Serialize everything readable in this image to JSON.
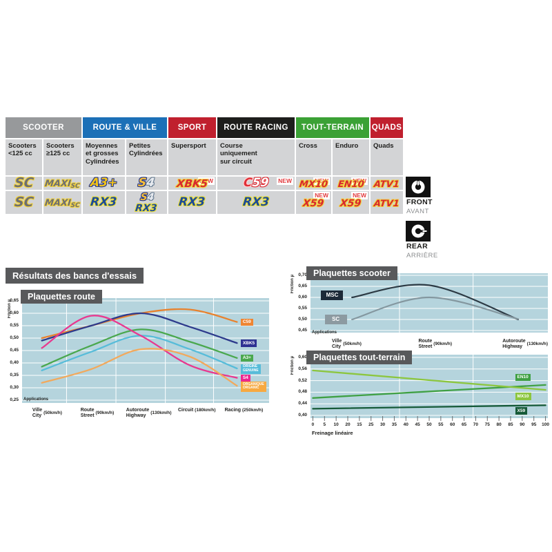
{
  "theme": {
    "plot_bg": "#b5d4dd",
    "title_bg": "#58595b",
    "cell_bg": "#d3d4d6",
    "new_color": "#e23a3e"
  },
  "results_heading": "Résultats des bancs d'essais",
  "table": {
    "new_label": "NEW",
    "groups": [
      {
        "label": "SCOOTER",
        "color": "#97999b",
        "span": 2
      },
      {
        "label": "ROUTE & VILLE",
        "color": "#1c70b7",
        "span": 2
      },
      {
        "label": "SPORT",
        "color": "#c0202e",
        "span": 1
      },
      {
        "label": "ROUTE RACING",
        "color": "#1e1e1c",
        "span": 1
      },
      {
        "label": "TOUT-TERRAIN",
        "color": "#3ba135",
        "span": 2
      },
      {
        "label": "QUADS",
        "color": "#c0202e",
        "span": 1
      }
    ],
    "columns": [
      "Scooters\n<125 cc",
      "Scooters\n≥125 cc",
      "Moyennes\net grosses\nCylindrées",
      "Petites\nCylindrées",
      "Supersport",
      "Course\nuniquement\nsur circuit",
      "Cross",
      "Enduro",
      "Quads"
    ],
    "front": [
      {
        "cell": "sc",
        "new": false,
        "lines": [
          [
            {
              "t": "SC",
              "s": "g sz19"
            }
          ]
        ]
      },
      {
        "cell": "maxi-sc",
        "new": false,
        "lines": [
          [
            {
              "t": "MAXI",
              "s": "g sz13"
            },
            {
              "t": "SC",
              "s": "g sz9"
            }
          ]
        ]
      },
      {
        "cell": "a3plus",
        "new": false,
        "lines": [
          [
            {
              "t": "A3+",
              "s": "y sz17"
            }
          ]
        ]
      },
      {
        "cell": "s4",
        "new": false,
        "lines": [
          [
            {
              "t": "S",
              "s": "gold sz17"
            },
            {
              "t": "4",
              "s": "sil sz17"
            }
          ]
        ]
      },
      {
        "cell": "xbk5",
        "new": true,
        "lines": [
          [
            {
              "t": "XBK5",
              "s": "red sz15"
            }
          ]
        ]
      },
      {
        "cell": "c59",
        "new": true,
        "lines": [
          [
            {
              "t": "C",
              "s": "cred sz17"
            },
            {
              "t": "59",
              "s": "cwhite sz17"
            }
          ]
        ]
      },
      {
        "cell": "mx10",
        "new": true,
        "lines": [
          [
            {
              "t": "MX10",
              "s": "red sz13"
            }
          ]
        ]
      },
      {
        "cell": "en10",
        "new": true,
        "lines": [
          [
            {
              "t": "EN10",
              "s": "red sz13"
            }
          ]
        ]
      },
      {
        "cell": "atv1",
        "new": false,
        "lines": [
          [
            {
              "t": "ATV1",
              "s": "red sz13"
            }
          ]
        ]
      }
    ],
    "rear": [
      {
        "cell": "sc",
        "new": false,
        "lines": [
          [
            {
              "t": "SC",
              "s": "g sz19"
            }
          ]
        ]
      },
      {
        "cell": "maxi-sc",
        "new": false,
        "lines": [
          [
            {
              "t": "MAXI",
              "s": "g sz13"
            },
            {
              "t": "SC",
              "s": "g sz9"
            }
          ]
        ]
      },
      {
        "cell": "rx3",
        "new": false,
        "lines": [
          [
            {
              "t": "RX3",
              "s": "blue sz17"
            }
          ]
        ]
      },
      {
        "cell": "s4-rx3",
        "new": false,
        "lines": [
          [
            {
              "t": "S",
              "s": "gold sz14"
            },
            {
              "t": "4",
              "s": "sil sz14"
            }
          ],
          [
            {
              "t": "RX3",
              "s": "blue sz14"
            }
          ]
        ]
      },
      {
        "cell": "rx3",
        "new": false,
        "lines": [
          [
            {
              "t": "RX3",
              "s": "blue sz17"
            }
          ]
        ]
      },
      {
        "cell": "rx3",
        "new": false,
        "lines": [
          [
            {
              "t": "RX3",
              "s": "blue sz17"
            }
          ]
        ]
      },
      {
        "cell": "x59",
        "new": true,
        "lines": [
          [
            {
              "t": "X59",
              "s": "red sz14"
            }
          ]
        ]
      },
      {
        "cell": "x59",
        "new": true,
        "lines": [
          [
            {
              "t": "X59",
              "s": "red sz14"
            }
          ]
        ]
      },
      {
        "cell": "atv1",
        "new": false,
        "lines": [
          [
            {
              "t": "ATV1",
              "s": "red sz13"
            }
          ]
        ]
      }
    ]
  },
  "axle": {
    "front": {
      "label": "FRONT",
      "sub": "AVANT",
      "icon": "brake-disc-front-icon"
    },
    "rear": {
      "label": "REAR",
      "sub": "ARRIÈRE",
      "icon": "brake-disc-rear-icon"
    }
  },
  "chart_data": [
    {
      "id": "route",
      "type": "line",
      "title": "Plaquettes route",
      "ylabel": "Friction µ",
      "x_heading": "Applications",
      "legend_position": "right",
      "grid": true,
      "ylim": [
        0.25,
        0.65
      ],
      "y_ticks": [
        "0,65",
        "0,60",
        "0,55",
        "0,50",
        "0,45",
        "0,40",
        "0,35",
        "0,30",
        "0,25"
      ],
      "categories": [
        {
          "fr": "Ville",
          "en": "City",
          "speed": "(50km/h)"
        },
        {
          "fr": "Route",
          "en": "Street",
          "speed": "(90km/h)"
        },
        {
          "fr": "Autoroute",
          "en": "Highway",
          "speed": "(130km/h)"
        },
        {
          "fr": "Circuit",
          "en": "",
          "speed": "(180km/h)"
        },
        {
          "fr": "Racing",
          "en": "",
          "speed": "(250km/h)"
        }
      ],
      "series": [
        {
          "name": "C59",
          "color": "#e8822e",
          "label_bg": "#ef8532",
          "label": [
            "C59"
          ],
          "values": [
            0.5,
            0.55,
            0.6,
            0.615,
            0.565
          ]
        },
        {
          "name": "XBK5",
          "color": "#2d3a8c",
          "label_bg": "#2e3192",
          "label": [
            "XBK5"
          ],
          "values": [
            0.49,
            0.55,
            0.6,
            0.545,
            0.48
          ]
        },
        {
          "name": "A3+",
          "color": "#4aa84e",
          "label_bg": "#4aa84e",
          "label": [
            "A3+"
          ],
          "values": [
            0.385,
            0.47,
            0.535,
            0.485,
            0.42
          ]
        },
        {
          "name": "ORIGINE",
          "color": "#57bcd9",
          "label_bg": "#57bcd9",
          "label": [
            "ORIGINE",
            "GENUINE"
          ],
          "values": [
            0.37,
            0.445,
            0.51,
            0.455,
            0.378
          ]
        },
        {
          "name": "S4",
          "color": "#e8388f",
          "label_bg": "#ec268f",
          "label": [
            "S4"
          ],
          "values": [
            0.46,
            0.59,
            0.51,
            0.39,
            0.34
          ]
        },
        {
          "name": "ORGANIQUE",
          "color": "#f2a95c",
          "label_bg": "#f7a941",
          "label": [
            "ORGANIQUE",
            "ORGANIC"
          ],
          "values": [
            0.32,
            0.375,
            0.455,
            0.425,
            0.308
          ]
        }
      ]
    },
    {
      "id": "scooter",
      "type": "line",
      "title": "Plaquettes scooter",
      "ylabel": "Friction µ",
      "x_heading": "Applications",
      "legend_position": "left",
      "grid": true,
      "ylim": [
        0.45,
        0.7
      ],
      "y_ticks": [
        "0,70",
        "0,65",
        "0,60",
        "0,55",
        "0,50",
        "0,45"
      ],
      "categories": [
        {
          "fr": "Ville",
          "en": "City",
          "speed": "(50km/h)"
        },
        {
          "fr": "Route",
          "en": "Street",
          "speed": "(90km/h)"
        },
        {
          "fr": "Autoroute",
          "en": "Highway",
          "speed": "(130km/h)"
        }
      ],
      "series": [
        {
          "name": "MSC",
          "color": "#2c3a44",
          "label_bg": "#1d2a38",
          "label": [
            "MSC"
          ],
          "values": [
            0.6,
            0.655,
            0.5
          ]
        },
        {
          "name": "SC",
          "color": "#84979f",
          "label_bg": "#8c9aa1",
          "label": [
            "SC"
          ],
          "values": [
            0.5,
            0.6,
            0.502
          ]
        }
      ]
    },
    {
      "id": "tt",
      "type": "line",
      "title": "Plaquettes tout-terrain",
      "ylabel": "Friction µ",
      "xlabel": "Freinage linéaire",
      "legend_position": "right",
      "grid": true,
      "ylim": [
        0.4,
        0.6
      ],
      "xlim": [
        0,
        100
      ],
      "y_ticks": [
        "0,60",
        "0,56",
        "0,52",
        "0,48",
        "0,44",
        "0,40"
      ],
      "x_ticks": [
        "0",
        "5",
        "10",
        "20",
        "15",
        "25",
        "30",
        "35",
        "40",
        "45",
        "50",
        "55",
        "60",
        "65",
        "70",
        "75",
        "80",
        "85",
        "90",
        "95",
        "100"
      ],
      "series": [
        {
          "name": "EN10",
          "color": "#3fa044",
          "label_bg": "#3fa044",
          "label": [
            "EN10"
          ],
          "values": [
            0.46,
            0.505
          ]
        },
        {
          "name": "MX10",
          "color": "#8cc63e",
          "label_bg": "#8cc63e",
          "label": [
            "MX10"
          ],
          "values": [
            0.555,
            0.488
          ]
        },
        {
          "name": "X59",
          "color": "#165a38",
          "label_bg": "#165a38",
          "label": [
            "X59"
          ],
          "values": [
            0.423,
            0.435
          ]
        }
      ]
    }
  ]
}
